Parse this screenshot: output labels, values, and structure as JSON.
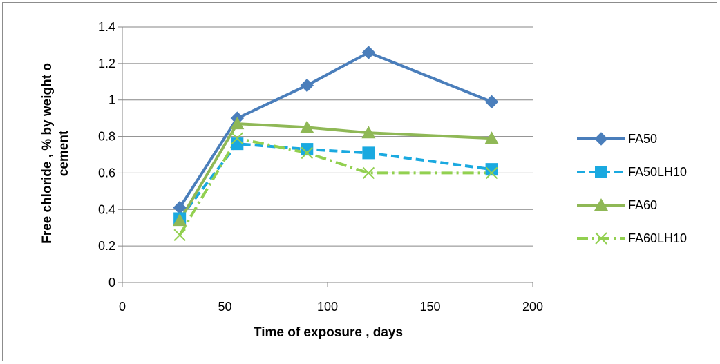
{
  "chart_data": {
    "type": "line",
    "title": "",
    "xlabel": "Time of exposure , days",
    "ylabel_lines": [
      "Free chloride , % by weight o",
      "cement"
    ],
    "xlim": [
      0,
      200
    ],
    "ylim": [
      0,
      1.4
    ],
    "x_ticks": [
      "0",
      "50",
      "100",
      "150",
      "200"
    ],
    "y_ticks": [
      "0",
      "0.2",
      "0.4",
      "0.6",
      "0.8",
      "1",
      "1.2",
      "1.4"
    ],
    "grid": "horizontal",
    "legend_position": "right",
    "series": [
      {
        "name": "FA50",
        "x": [
          28,
          56,
          90,
          120,
          180
        ],
        "y": [
          0.41,
          0.9,
          1.08,
          1.26,
          0.99
        ],
        "color": "#4a7ebb",
        "marker": "diamond",
        "dash": "solid"
      },
      {
        "name": "FA50LH10",
        "x": [
          28,
          56,
          90,
          120,
          180
        ],
        "y": [
          0.35,
          0.76,
          0.73,
          0.71,
          0.62
        ],
        "color": "#1aa9e0",
        "marker": "square",
        "dash": "dashed"
      },
      {
        "name": "FA60",
        "x": [
          28,
          56,
          90,
          120,
          180
        ],
        "y": [
          0.34,
          0.87,
          0.85,
          0.82,
          0.79
        ],
        "color": "#8fb856",
        "marker": "triangle",
        "dash": "solid"
      },
      {
        "name": "FA60LH10",
        "x": [
          28,
          56,
          90,
          120,
          180
        ],
        "y": [
          0.26,
          0.79,
          0.71,
          0.6,
          0.6
        ],
        "color": "#92d050",
        "marker": "x",
        "dash": "dashdot"
      }
    ]
  }
}
